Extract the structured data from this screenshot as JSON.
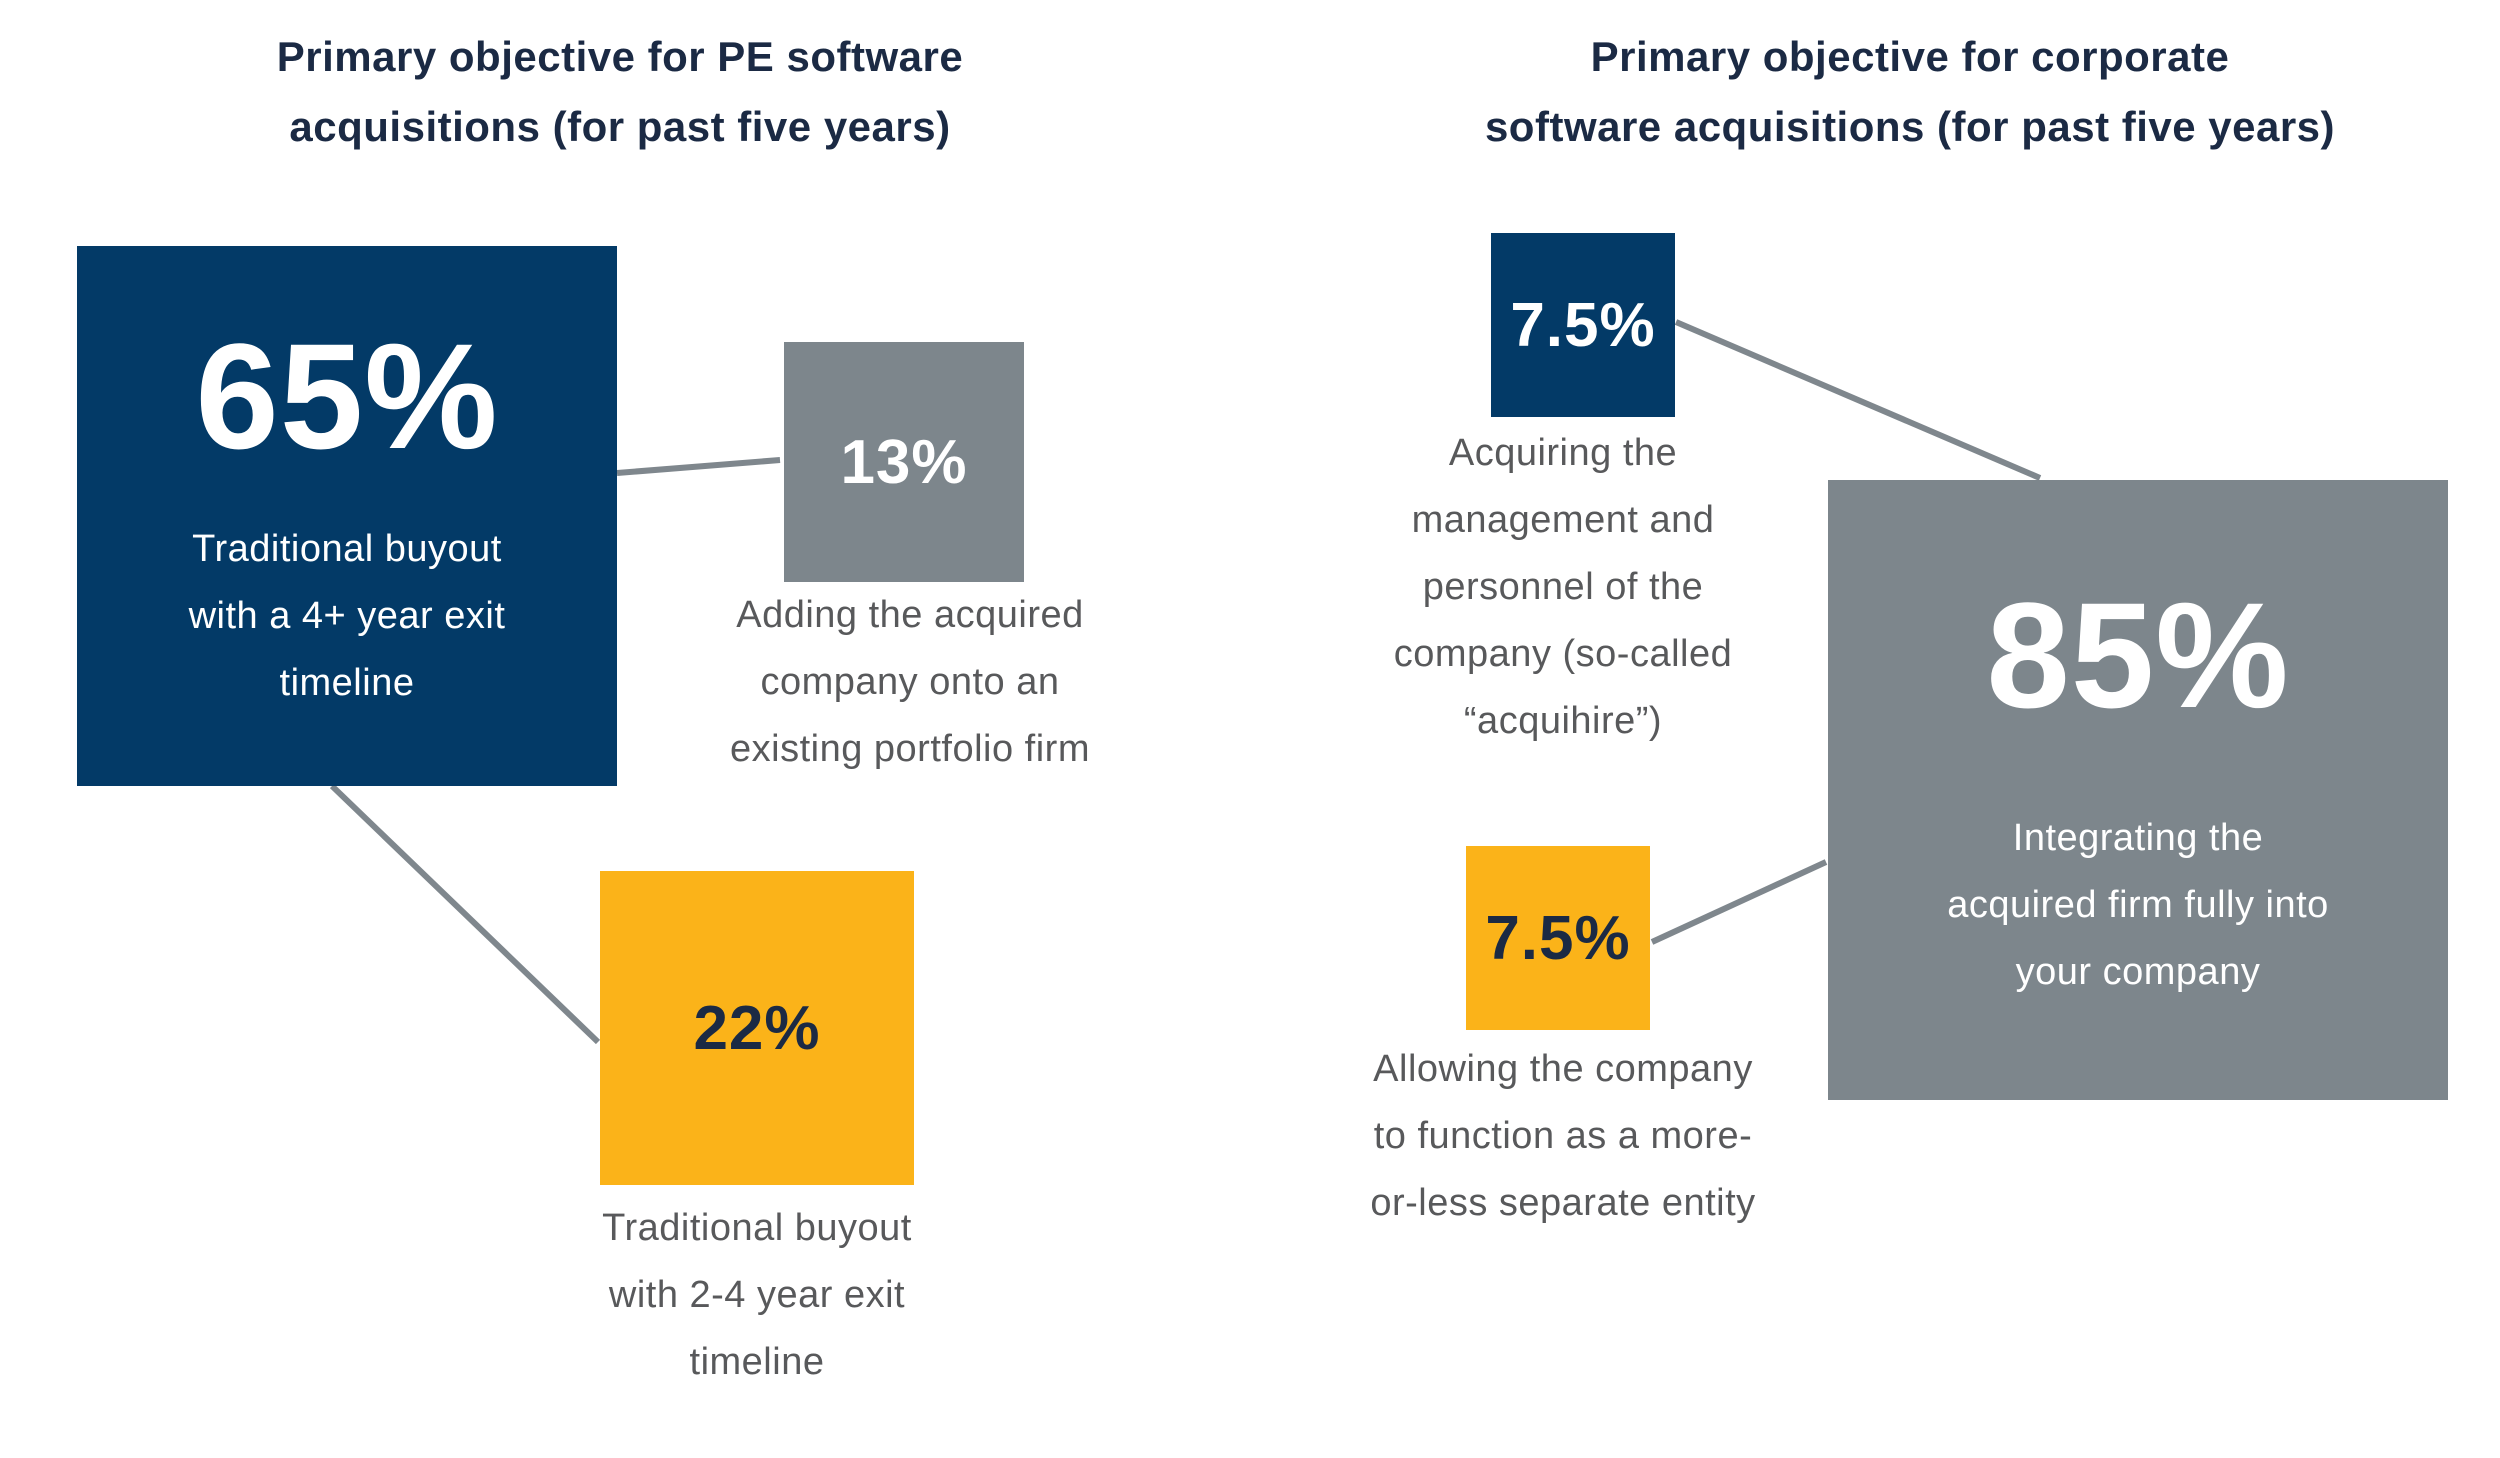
{
  "colors": {
    "navy": "#033a67",
    "gray": "#7d868c",
    "yellow": "#fbb319",
    "connector": "#7f878d",
    "dark_text": "#1b2a44",
    "caption_text": "#58595b"
  },
  "chart_data": [
    {
      "type": "proportional-squares",
      "title_lines": [
        "Primary objective for PE software",
        "acquisitions (for past five years)"
      ],
      "unit": "%",
      "items": [
        {
          "value": 65,
          "label": "65%",
          "desc_lines": [
            "Traditional buyout",
            "with a 4+ year exit",
            "timeline"
          ],
          "color": "navy"
        },
        {
          "value": 13,
          "label": "13%",
          "desc_lines": [
            "Adding the acquired",
            "company onto an",
            "existing portfolio firm"
          ],
          "color": "gray"
        },
        {
          "value": 22,
          "label": "22%",
          "desc_lines": [
            "Traditional buyout",
            "with 2-4 year exit",
            "timeline"
          ],
          "color": "yellow"
        }
      ]
    },
    {
      "type": "proportional-squares",
      "title_lines": [
        "Primary objective for corporate",
        "software acquisitions (for past five years)"
      ],
      "unit": "%",
      "items": [
        {
          "value": 7.5,
          "label": "7.5%",
          "desc_lines": [
            "Acquiring the",
            "management and",
            "personnel of the",
            "company (so-called",
            "“acquihire”)"
          ],
          "color": "navy"
        },
        {
          "value": 85,
          "label": "85%",
          "desc_lines": [
            "Integrating the",
            "acquired firm fully into",
            "your company"
          ],
          "color": "gray"
        },
        {
          "value": 7.5,
          "label": "7.5%",
          "desc_lines": [
            "Allowing the company",
            "to function as a more-",
            "or-less separate entity"
          ],
          "color": "yellow"
        }
      ]
    }
  ]
}
